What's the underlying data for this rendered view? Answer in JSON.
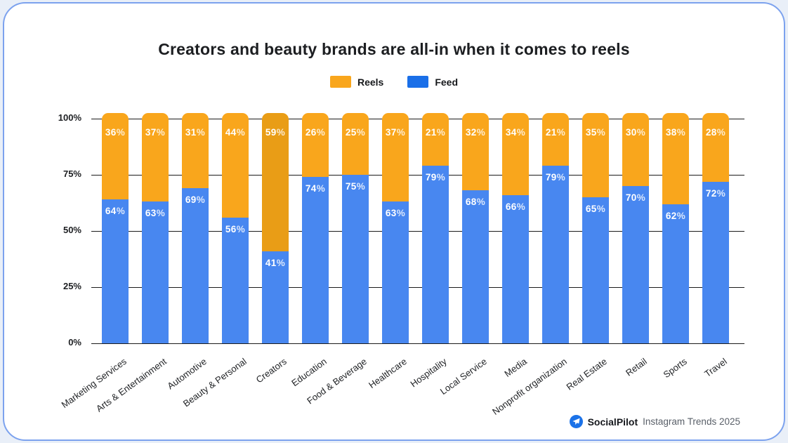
{
  "page": {
    "title": "Creators and beauty brands are all-in when it comes to reels"
  },
  "legend": {
    "items": [
      {
        "label": "Reels",
        "color": "#F9A61C"
      },
      {
        "label": "Feed",
        "color": "#1A6FE8"
      }
    ]
  },
  "footer": {
    "brand": "SocialPilot",
    "caption": "Instagram Trends 2025",
    "logo_color": "#1B72E8"
  },
  "chart_data": {
    "type": "bar",
    "stacked": true,
    "title": "Creators and beauty brands are all-in when it comes to reels",
    "categories": [
      "Marketing Services",
      "Arts & Entertainment",
      "Automotive",
      "Beauty & Personal",
      "Creators",
      "Education",
      "Food & Beverage",
      "Healthcare",
      "Hospitality",
      "Local Service",
      "Media",
      "Nonprofit organization",
      "Real Estate",
      "Retail",
      "Sports",
      "Travel"
    ],
    "series": [
      {
        "name": "Reels",
        "color": "#F9A61C",
        "values": [
          36,
          37,
          31,
          44,
          59,
          26,
          25,
          37,
          21,
          32,
          34,
          21,
          35,
          30,
          38,
          28
        ]
      },
      {
        "name": "Feed",
        "color": "#4887F0",
        "values": [
          64,
          63,
          69,
          56,
          41,
          74,
          75,
          63,
          79,
          68,
          66,
          79,
          65,
          70,
          62,
          72
        ]
      }
    ],
    "highlighted_category": "Creators",
    "highlight_color": "#E99D16",
    "value_label_suffix": "%",
    "y_ticks": [
      "0%",
      "25%",
      "50%",
      "75%",
      "100%"
    ],
    "ylim": [
      0,
      100
    ],
    "grid": true,
    "legend_position": "top"
  }
}
